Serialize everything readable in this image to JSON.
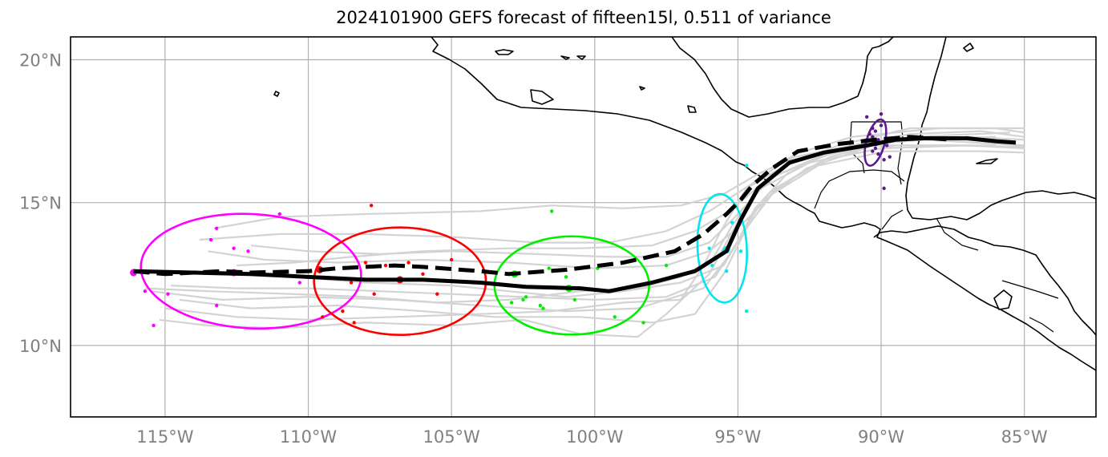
{
  "title": "2024101900 GEFS forecast of fifteen15l, 0.511 of variance",
  "axes": {
    "x_ticks": [
      {
        "lon": -115,
        "label": "115°W"
      },
      {
        "lon": -110,
        "label": "110°W"
      },
      {
        "lon": -105,
        "label": "105°W"
      },
      {
        "lon": -100,
        "label": "100°W"
      },
      {
        "lon": -95,
        "label": "95°W"
      },
      {
        "lon": -90,
        "label": "90°W"
      },
      {
        "lon": -85,
        "label": "85°W"
      }
    ],
    "y_ticks": [
      {
        "lat": 20,
        "label": "20°N"
      },
      {
        "lat": 15,
        "label": "15°N"
      },
      {
        "lat": 10,
        "label": "10°N"
      }
    ],
    "lon_range": [
      -118.3,
      -82.5
    ],
    "lat_range": [
      7.5,
      20.8
    ],
    "grid": true
  },
  "colors": {
    "member_tracks": "#d3d3d3",
    "mean_track": "#000000",
    "ellipses": [
      "#ff00ff",
      "#ff0000",
      "#00ee00",
      "#00e5ee",
      "#5b1a8f"
    ]
  },
  "chart_data": {
    "type": "scatter",
    "mean_track_solid": [
      [
        -116.1,
        12.6
      ],
      [
        -114,
        12.55
      ],
      [
        -112,
        12.5
      ],
      [
        -110,
        12.4
      ],
      [
        -108,
        12.3
      ],
      [
        -106,
        12.3
      ],
      [
        -104,
        12.2
      ],
      [
        -102.4,
        12.05
      ],
      [
        -100.5,
        12.0
      ],
      [
        -99.5,
        11.9
      ],
      [
        -98,
        12.2
      ],
      [
        -96.5,
        12.6
      ],
      [
        -95.4,
        13.3
      ],
      [
        -94.9,
        14.4
      ],
      [
        -94.3,
        15.5
      ],
      [
        -93.2,
        16.4
      ],
      [
        -92,
        16.75
      ],
      [
        -90.5,
        17.0
      ],
      [
        -89.5,
        17.2
      ],
      [
        -88.5,
        17.25
      ],
      [
        -87,
        17.25
      ],
      [
        -86,
        17.15
      ],
      [
        -85.3,
        17.1
      ]
    ],
    "mean_track_dashed": [
      [
        -116.1,
        12.6
      ],
      [
        -115,
        12.5
      ],
      [
        -113,
        12.6
      ],
      [
        -112,
        12.55
      ],
      [
        -110,
        12.6
      ],
      [
        -109,
        12.7
      ],
      [
        -108,
        12.75
      ],
      [
        -107,
        12.8
      ],
      [
        -106,
        12.75
      ],
      [
        -104,
        12.6
      ],
      [
        -103,
        12.5
      ],
      [
        -101,
        12.65
      ],
      [
        -99,
        12.9
      ],
      [
        -97.2,
        13.3
      ],
      [
        -96.2,
        13.9
      ],
      [
        -95.4,
        14.6
      ],
      [
        -94.9,
        15.1
      ],
      [
        -94.5,
        15.6
      ],
      [
        -93.8,
        16.2
      ],
      [
        -92.9,
        16.8
      ],
      [
        -91.5,
        17.05
      ],
      [
        -90.2,
        17.2
      ],
      [
        -89,
        17.3
      ],
      [
        -88.2,
        17.25
      ],
      [
        -87.5,
        17.2
      ]
    ],
    "member_tracks": [
      [
        [
          -115.5,
          11.9
        ],
        [
          -113,
          11.6
        ],
        [
          -110,
          11.7
        ],
        [
          -107,
          11.6
        ],
        [
          -104,
          11.4
        ],
        [
          -101,
          11.2
        ],
        [
          -98.5,
          11.3
        ],
        [
          -96.2,
          12.0
        ],
        [
          -95.2,
          13.3
        ],
        [
          -94.4,
          14.8
        ],
        [
          -93.3,
          16.0
        ],
        [
          -91.5,
          16.9
        ],
        [
          -89,
          17.4
        ],
        [
          -86.5,
          17.5
        ],
        [
          -85,
          17.3
        ]
      ],
      [
        [
          -115.2,
          10.9
        ],
        [
          -113.5,
          10.7
        ],
        [
          -111,
          10.6
        ],
        [
          -108,
          10.8
        ],
        [
          -105,
          10.7
        ],
        [
          -102.5,
          10.9
        ],
        [
          -100.5,
          10.4
        ],
        [
          -98.5,
          10.3
        ],
        [
          -97.5,
          11.1
        ],
        [
          -96,
          12.5
        ],
        [
          -95.3,
          13.8
        ],
        [
          -94.5,
          15.2
        ],
        [
          -93.3,
          16.3
        ],
        [
          -91.5,
          17.0
        ],
        [
          -89,
          17.6
        ],
        [
          -86,
          17.6
        ],
        [
          -85,
          17.45
        ]
      ],
      [
        [
          -113.3,
          14.1
        ],
        [
          -111,
          14.5
        ],
        [
          -108,
          14.6
        ],
        [
          -104,
          14.7
        ],
        [
          -101.5,
          14.9
        ],
        [
          -99,
          14.8
        ],
        [
          -97,
          14.9
        ],
        [
          -95.5,
          15.3
        ],
        [
          -94.3,
          16.0
        ],
        [
          -93,
          16.6
        ],
        [
          -91,
          17.0
        ],
        [
          -88.5,
          17.2
        ],
        [
          -85,
          17.0
        ]
      ],
      [
        [
          -113.8,
          13.7
        ],
        [
          -111,
          13.9
        ],
        [
          -108,
          13.9
        ],
        [
          -105,
          13.8
        ],
        [
          -102,
          13.6
        ],
        [
          -99.5,
          13.6
        ],
        [
          -97.5,
          14.0
        ],
        [
          -96,
          14.7
        ],
        [
          -94.6,
          15.6
        ],
        [
          -93,
          16.7
        ],
        [
          -91,
          17.3
        ],
        [
          -88,
          17.6
        ],
        [
          -85,
          17.6
        ]
      ],
      [
        [
          -113.5,
          13.3
        ],
        [
          -111.5,
          13.0
        ],
        [
          -109,
          12.9
        ],
        [
          -106,
          13.0
        ],
        [
          -103,
          12.9
        ],
        [
          -100,
          12.7
        ],
        [
          -97.5,
          12.8
        ],
        [
          -96,
          13.3
        ],
        [
          -94.8,
          14.3
        ],
        [
          -93.5,
          15.6
        ],
        [
          -91.8,
          16.6
        ],
        [
          -89.5,
          17.2
        ],
        [
          -86,
          17.3
        ]
      ],
      [
        [
          -112.5,
          12.8
        ],
        [
          -110.5,
          12.9
        ],
        [
          -108.5,
          13.1
        ],
        [
          -106,
          13.3
        ],
        [
          -103,
          13.4
        ],
        [
          -100.5,
          13.4
        ],
        [
          -98,
          13.5
        ],
        [
          -96.5,
          14.0
        ],
        [
          -95.3,
          14.7
        ],
        [
          -94,
          15.8
        ],
        [
          -92.2,
          16.6
        ],
        [
          -89.5,
          17.2
        ],
        [
          -86,
          17.2
        ]
      ],
      [
        [
          -114.5,
          11.6
        ],
        [
          -112,
          11.3
        ],
        [
          -109,
          11.4
        ],
        [
          -106,
          11.2
        ],
        [
          -103.5,
          11.0
        ],
        [
          -100.5,
          11.0
        ],
        [
          -98,
          10.8
        ],
        [
          -96.5,
          11.1
        ],
        [
          -95.5,
          12.5
        ],
        [
          -94.7,
          14.1
        ],
        [
          -93.7,
          15.5
        ],
        [
          -92,
          16.5
        ],
        [
          -89.5,
          17.0
        ],
        [
          -86,
          17.0
        ]
      ],
      [
        [
          -114.8,
          12.1
        ],
        [
          -112.5,
          12.0
        ],
        [
          -110,
          12.0
        ],
        [
          -107.5,
          11.9
        ],
        [
          -105,
          11.8
        ],
        [
          -102.5,
          11.7
        ],
        [
          -100,
          11.6
        ],
        [
          -97.5,
          11.7
        ],
        [
          -95.8,
          12.4
        ],
        [
          -95.1,
          13.5
        ],
        [
          -94.2,
          15.0
        ],
        [
          -92.6,
          16.2
        ],
        [
          -90,
          17.1
        ],
        [
          -87,
          17.3
        ],
        [
          -85,
          17.2
        ]
      ],
      [
        [
          -115,
          11.3
        ],
        [
          -112.5,
          11.0
        ],
        [
          -110,
          10.9
        ],
        [
          -107,
          11.0
        ],
        [
          -104,
          11.1
        ],
        [
          -101.5,
          11.2
        ],
        [
          -99,
          11.5
        ],
        [
          -97,
          11.6
        ],
        [
          -96.2,
          12.8
        ],
        [
          -95.6,
          14.0
        ],
        [
          -94.7,
          15.5
        ],
        [
          -93,
          16.5
        ],
        [
          -90.5,
          17.0
        ],
        [
          -87.5,
          17.0
        ],
        [
          -85,
          16.95
        ]
      ],
      [
        [
          -113.3,
          12.5
        ],
        [
          -110.5,
          12.4
        ],
        [
          -108,
          12.2
        ],
        [
          -105,
          12.1
        ],
        [
          -103,
          11.9
        ],
        [
          -101,
          11.7
        ],
        [
          -99,
          11.9
        ],
        [
          -97,
          12.2
        ],
        [
          -95.5,
          12.8
        ],
        [
          -94.8,
          14.0
        ],
        [
          -93.8,
          15.3
        ],
        [
          -92.2,
          16.3
        ],
        [
          -89.8,
          16.8
        ],
        [
          -86.5,
          16.8
        ],
        [
          -85,
          16.75
        ]
      ],
      [
        [
          -112,
          13.5
        ],
        [
          -110,
          13.3
        ],
        [
          -107.5,
          13.2
        ],
        [
          -105,
          13.3
        ],
        [
          -102,
          13.2
        ],
        [
          -99.5,
          13.1
        ],
        [
          -97.5,
          13.1
        ],
        [
          -96,
          13.6
        ],
        [
          -95,
          14.6
        ],
        [
          -93.8,
          15.9
        ],
        [
          -91.8,
          16.7
        ],
        [
          -89,
          17.3
        ],
        [
          -85.5,
          17.45
        ]
      ],
      [
        [
          -115.7,
          12.0
        ],
        [
          -113.5,
          11.9
        ],
        [
          -110.5,
          11.8
        ],
        [
          -108,
          11.7
        ],
        [
          -105.5,
          11.5
        ],
        [
          -103,
          11.6
        ],
        [
          -100.5,
          11.9
        ],
        [
          -98.5,
          12.0
        ],
        [
          -97,
          12.4
        ],
        [
          -95.9,
          13.0
        ],
        [
          -95.2,
          14.2
        ],
        [
          -94.2,
          15.5
        ],
        [
          -92.5,
          16.4
        ],
        [
          -90,
          16.9
        ],
        [
          -87,
          17.0
        ],
        [
          -85,
          16.9
        ]
      ]
    ],
    "ellipses": [
      {
        "center": [
          -112.0,
          12.6
        ],
        "semi_axes_deg": [
          3.85,
          2.0
        ],
        "angle_deg": 3,
        "color": "magenta"
      },
      {
        "center": [
          -106.8,
          12.25
        ],
        "semi_axes_deg": [
          3.0,
          1.88
        ],
        "angle_deg": 0,
        "color": "red"
      },
      {
        "center": [
          -100.8,
          12.1
        ],
        "semi_axes_deg": [
          2.7,
          1.72
        ],
        "angle_deg": 0,
        "color": "green"
      },
      {
        "center": [
          -95.55,
          13.4
        ],
        "semi_axes_deg": [
          0.86,
          1.9
        ],
        "angle_deg": -3,
        "color": "cyan"
      },
      {
        "center": [
          -90.2,
          17.1
        ],
        "semi_axes_deg": [
          0.32,
          0.83
        ],
        "angle_deg": 15,
        "color": "purple"
      }
    ],
    "ellipse_centroids": [
      {
        "lonlat": [
          -116.1,
          12.55
        ],
        "color": "magenta"
      },
      {
        "lonlat": [
          -112.6,
          12.55
        ],
        "color": "magenta"
      },
      {
        "lonlat": [
          -109.6,
          12.65
        ],
        "color": "red"
      },
      {
        "lonlat": [
          -106.8,
          12.3
        ],
        "color": "red"
      },
      {
        "lonlat": [
          -102.8,
          12.5
        ],
        "color": "green"
      },
      {
        "lonlat": [
          -100.9,
          12.0
        ],
        "color": "green"
      },
      {
        "lonlat": [
          -95.4,
          13.35
        ],
        "color": "cyan"
      },
      {
        "lonlat": [
          -90.2,
          17.1
        ],
        "color": "purple"
      }
    ],
    "member_points": [
      {
        "color": "magenta",
        "points": [
          [
            -111.0,
            14.6
          ],
          [
            -113.2,
            14.1
          ],
          [
            -113.4,
            13.7
          ],
          [
            -112.6,
            13.4
          ],
          [
            -112.1,
            13.3
          ],
          [
            -110.3,
            12.2
          ],
          [
            -115.7,
            11.9
          ],
          [
            -114.9,
            11.8
          ],
          [
            -113.2,
            11.4
          ],
          [
            -115.4,
            10.7
          ]
        ]
      },
      {
        "color": "red",
        "points": [
          [
            -107.8,
            14.9
          ],
          [
            -105.0,
            13.0
          ],
          [
            -106.5,
            12.9
          ],
          [
            -107.3,
            12.8
          ],
          [
            -108.0,
            12.9
          ],
          [
            -108.5,
            12.2
          ],
          [
            -106.0,
            12.5
          ],
          [
            -107.7,
            11.8
          ],
          [
            -105.5,
            11.8
          ],
          [
            -108.8,
            11.2
          ],
          [
            -109.5,
            11.0
          ],
          [
            -108.4,
            10.8
          ]
        ]
      },
      {
        "color": "green",
        "points": [
          [
            -101.5,
            14.7
          ],
          [
            -101.6,
            12.7
          ],
          [
            -101.0,
            12.4
          ],
          [
            -99.9,
            12.7
          ],
          [
            -102.4,
            11.7
          ],
          [
            -102.5,
            11.6
          ],
          [
            -102.9,
            11.5
          ],
          [
            -101.8,
            11.3
          ],
          [
            -101.9,
            11.4
          ],
          [
            -100.7,
            11.6
          ],
          [
            -99.3,
            11.0
          ],
          [
            -98.3,
            10.8
          ],
          [
            -97.5,
            12.8
          ]
        ]
      },
      {
        "color": "cyan",
        "points": [
          [
            -94.7,
            16.3
          ],
          [
            -95.2,
            14.3
          ],
          [
            -96.0,
            13.4
          ],
          [
            -95.5,
            13.3
          ],
          [
            -94.9,
            13.3
          ],
          [
            -95.9,
            12.8
          ],
          [
            -95.4,
            12.6
          ],
          [
            -94.7,
            11.2
          ]
        ]
      },
      {
        "color": "purple",
        "points": [
          [
            -90.5,
            18.0
          ],
          [
            -90.0,
            18.1
          ],
          [
            -90.3,
            17.6
          ],
          [
            -90.0,
            17.7
          ],
          [
            -90.2,
            17.5
          ],
          [
            -90.4,
            17.4
          ],
          [
            -90.6,
            17.0
          ],
          [
            -90.2,
            16.9
          ],
          [
            -89.8,
            17.0
          ],
          [
            -90.1,
            16.7
          ],
          [
            -89.9,
            16.5
          ],
          [
            -89.7,
            16.6
          ],
          [
            -90.3,
            16.8
          ],
          [
            -89.9,
            15.5
          ],
          [
            -90.3,
            17.3
          ],
          [
            -90.1,
            17.2
          ]
        ]
      }
    ]
  }
}
